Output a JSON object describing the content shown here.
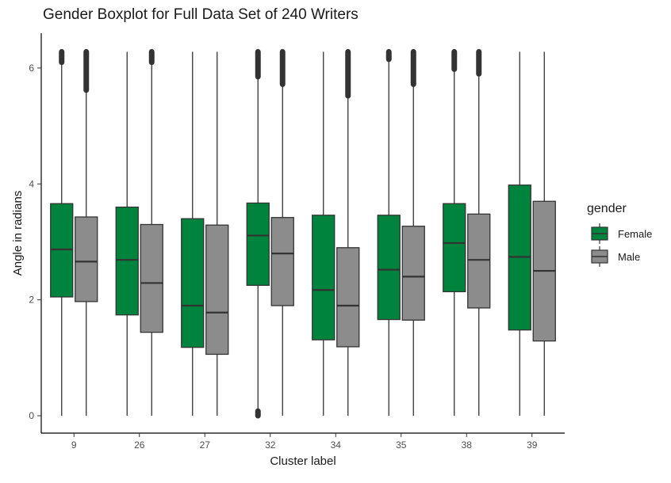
{
  "chart_data": {
    "type": "boxplot",
    "title": "Gender Boxplot for Full Data Set of 240 Writers",
    "xlabel": "Cluster label",
    "ylabel": "Angle in radians",
    "categories": [
      "9",
      "26",
      "27",
      "32",
      "34",
      "35",
      "38",
      "39"
    ],
    "ylim": [
      -0.3,
      6.6
    ],
    "yticks": [
      0,
      2,
      4,
      6
    ],
    "grid": false,
    "legend": {
      "title": "gender",
      "position": "right"
    },
    "series": [
      {
        "name": "Female",
        "color": "#00843D",
        "boxes": [
          {
            "whisker_low": 0.0,
            "q1": 2.05,
            "median": 2.87,
            "q3": 3.66,
            "whisker_high": 6.1,
            "outliers_range": [
              6.1,
              6.28
            ]
          },
          {
            "whisker_low": 0.0,
            "q1": 1.74,
            "median": 2.69,
            "q3": 3.6,
            "whisker_high": 6.28,
            "outliers_range": null
          },
          {
            "whisker_low": 0.0,
            "q1": 1.18,
            "median": 1.9,
            "q3": 3.4,
            "whisker_high": 6.28,
            "outliers_range": null
          },
          {
            "whisker_low": 0.08,
            "q1": 2.25,
            "median": 3.11,
            "q3": 3.67,
            "whisker_high": 5.85,
            "outliers_range": [
              5.85,
              6.28
            ],
            "low_outliers_range": [
              0.0,
              0.08
            ]
          },
          {
            "whisker_low": 0.0,
            "q1": 1.31,
            "median": 2.17,
            "q3": 3.46,
            "whisker_high": 6.28,
            "outliers_range": null
          },
          {
            "whisker_low": 0.0,
            "q1": 1.66,
            "median": 2.52,
            "q3": 3.46,
            "whisker_high": 6.15,
            "outliers_range": [
              6.15,
              6.28
            ]
          },
          {
            "whisker_low": 0.0,
            "q1": 2.14,
            "median": 2.98,
            "q3": 3.66,
            "whisker_high": 5.98,
            "outliers_range": [
              5.98,
              6.28
            ]
          },
          {
            "whisker_low": 0.0,
            "q1": 1.48,
            "median": 2.74,
            "q3": 3.98,
            "whisker_high": 6.28,
            "outliers_range": null
          }
        ]
      },
      {
        "name": "Male",
        "color": "#8C8C8C",
        "boxes": [
          {
            "whisker_low": 0.0,
            "q1": 1.97,
            "median": 2.66,
            "q3": 3.43,
            "whisker_high": 5.62,
            "outliers_range": [
              5.62,
              6.28
            ]
          },
          {
            "whisker_low": 0.0,
            "q1": 1.44,
            "median": 2.29,
            "q3": 3.3,
            "whisker_high": 6.1,
            "outliers_range": [
              6.1,
              6.28
            ]
          },
          {
            "whisker_low": 0.0,
            "q1": 1.06,
            "median": 1.78,
            "q3": 3.29,
            "whisker_high": 6.28,
            "outliers_range": null
          },
          {
            "whisker_low": 0.0,
            "q1": 1.9,
            "median": 2.8,
            "q3": 3.42,
            "whisker_high": 5.72,
            "outliers_range": [
              5.72,
              6.28
            ]
          },
          {
            "whisker_low": 0.0,
            "q1": 1.19,
            "median": 1.9,
            "q3": 2.9,
            "whisker_high": 5.52,
            "outliers_range": [
              5.52,
              6.28
            ]
          },
          {
            "whisker_low": 0.0,
            "q1": 1.65,
            "median": 2.4,
            "q3": 3.27,
            "whisker_high": 5.72,
            "outliers_range": [
              5.72,
              6.28
            ]
          },
          {
            "whisker_low": 0.0,
            "q1": 1.86,
            "median": 2.69,
            "q3": 3.48,
            "whisker_high": 5.9,
            "outliers_range": [
              5.9,
              6.28
            ]
          },
          {
            "whisker_low": 0.0,
            "q1": 1.29,
            "median": 2.5,
            "q3": 3.7,
            "whisker_high": 6.28,
            "outliers_range": null
          }
        ]
      }
    ]
  }
}
